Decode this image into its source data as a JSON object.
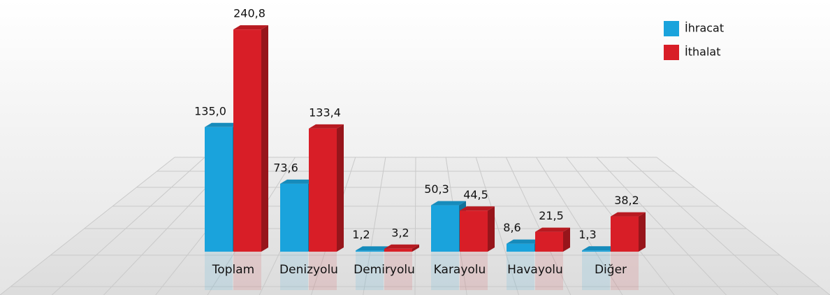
{
  "chart_data": {
    "type": "bar3d",
    "categories": [
      "Toplam",
      "Denizyolu",
      "Demiryolu",
      "Karayolu",
      "Havayolu",
      "Diğer"
    ],
    "series": [
      {
        "name": "İhracat",
        "color": "#1aa3dc",
        "values": [
          135.0,
          73.6,
          1.2,
          50.3,
          8.6,
          1.3
        ],
        "value_labels": [
          "135,0",
          "73,6",
          "1,2",
          "50,3",
          "8,6",
          "1,3"
        ]
      },
      {
        "name": "İthalat",
        "color": "#d81e27",
        "values": [
          240.8,
          133.4,
          3.2,
          44.5,
          21.5,
          38.2
        ],
        "value_labels": [
          "240,8",
          "133,4",
          "3,2",
          "44,5",
          "21,5",
          "38,2"
        ]
      }
    ],
    "legend": "top-right"
  }
}
